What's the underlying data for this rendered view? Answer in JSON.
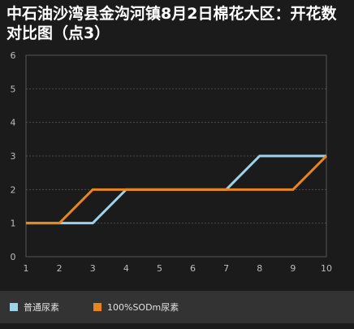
{
  "chart_data": {
    "type": "line",
    "title": "中石油沙湾县金沟河镇8月2日棉花大区：开花数对比图（点3）",
    "x": [
      1,
      2,
      3,
      4,
      5,
      6,
      7,
      8,
      9,
      10
    ],
    "xlim": [
      1,
      10
    ],
    "ylim": [
      0,
      6
    ],
    "yticks": [
      0,
      1,
      2,
      3,
      4,
      5,
      6
    ],
    "grid": true,
    "legend": "bottom",
    "series": [
      {
        "name": "普通尿素",
        "color": "#9bd4ea",
        "values": [
          1,
          1,
          1,
          2,
          2,
          2,
          2,
          3,
          3,
          3
        ]
      },
      {
        "name": "100%SODm尿素",
        "color": "#e8861c",
        "values": [
          1,
          1,
          2,
          2,
          2,
          2,
          2,
          2,
          2,
          3
        ]
      }
    ]
  }
}
